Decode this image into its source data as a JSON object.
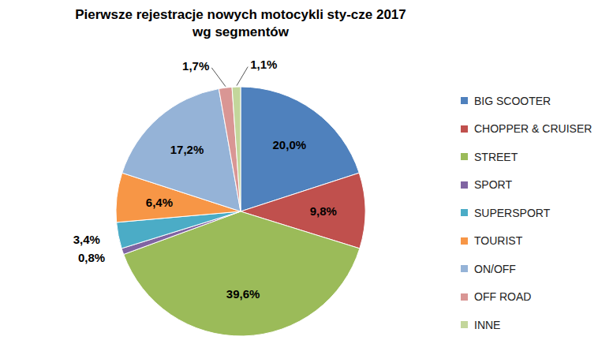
{
  "chart_data": {
    "type": "pie",
    "title": "Pierwsze rejestracje nowych motocykli sty-cze 2017\nwg segmentów",
    "categories": [
      "BIG SCOOTER",
      "CHOPPER & CRUISER",
      "STREET",
      "SPORT",
      "SUPERSPORT",
      "TOURIST",
      "ON/OFF",
      "OFF ROAD",
      "INNE"
    ],
    "values": [
      20.0,
      9.8,
      39.6,
      0.8,
      3.4,
      6.4,
      17.2,
      1.7,
      1.1
    ],
    "value_labels": [
      "20,0%",
      "9,8%",
      "39,6%",
      "0,8%",
      "3,4%",
      "6,4%",
      "17,2%",
      "1,7%",
      "1,1%"
    ],
    "colors": [
      "#4F81BD",
      "#C0504D",
      "#9BBB59",
      "#8064A2",
      "#4BACC6",
      "#F79646",
      "#95B3D7",
      "#D99694",
      "#C3D69B"
    ],
    "data_labels": true,
    "legend": "right"
  }
}
